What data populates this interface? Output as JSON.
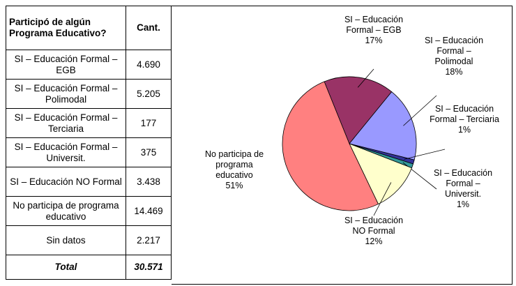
{
  "table": {
    "header": [
      "Participó de algún Programa Educativo?",
      "Cant."
    ],
    "rows": [
      [
        "SI – Educación Formal – EGB",
        "4.690"
      ],
      [
        "SI – Educación Formal – Polimodal",
        "5.205"
      ],
      [
        "SI – Educación Formal – Terciaria",
        "177"
      ],
      [
        "SI – Educación Formal – Universit.",
        "375"
      ],
      [
        "SI – Educación NO Formal",
        "3.438"
      ],
      [
        "No participa de programa educativo",
        "14.469"
      ],
      [
        "Sin datos",
        "2.217"
      ]
    ],
    "total": [
      "Total",
      "30.571"
    ]
  },
  "chart_data": {
    "type": "pie",
    "categories": [
      "SI – Educación Formal – EGB",
      "SI – Educación Formal – Polimodal",
      "SI – Educación Formal – Terciaria",
      "SI – Educación Formal – Universit.",
      "SI – Educación NO Formal",
      "No participa de programa educativo"
    ],
    "values": [
      17,
      18,
      1,
      1,
      12,
      51
    ],
    "value_labels": [
      "17%",
      "18%",
      "1%",
      "1%",
      "12%",
      "51%"
    ],
    "colors": [
      "#993366",
      "#9999ff",
      "#333399",
      "#339999",
      "#ffffcc",
      "#ff8080"
    ]
  }
}
